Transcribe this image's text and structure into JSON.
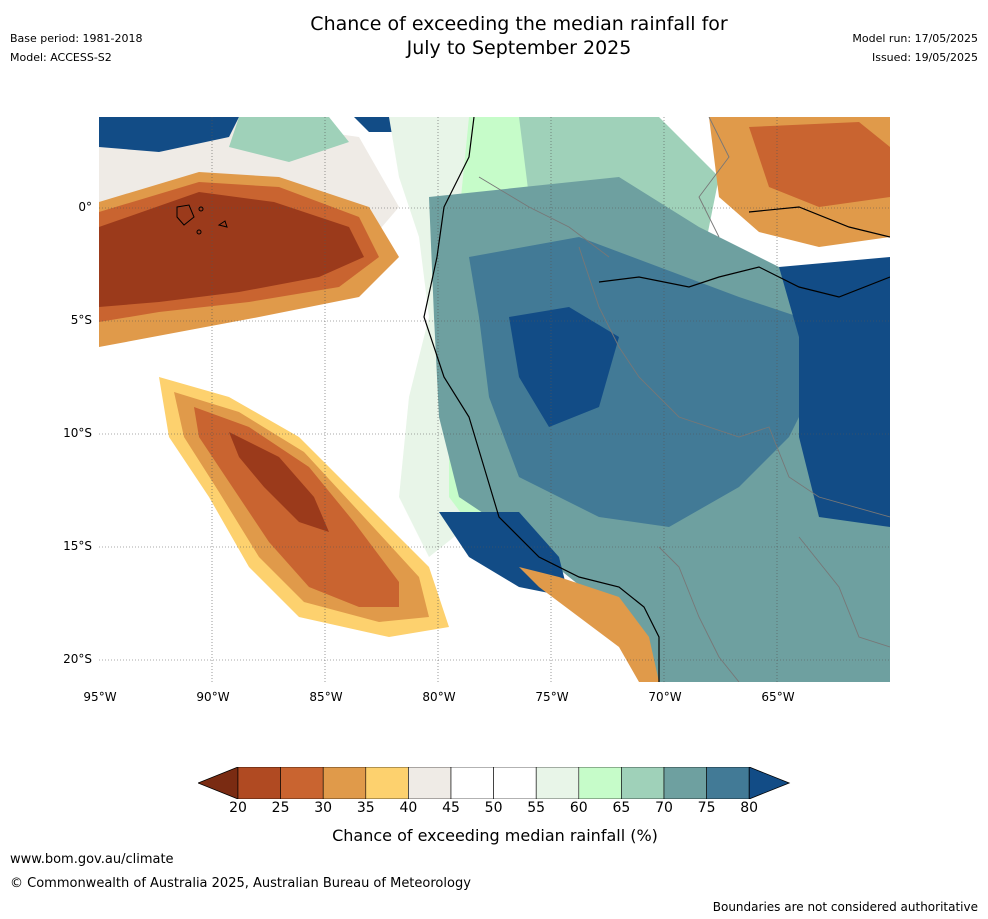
{
  "header": {
    "title_line1": "Chance of exceeding the median rainfall for",
    "title_line2": "July to September 2025",
    "base_period": "Base period: 1981-2018",
    "model": "Model: ACCESS-S2",
    "model_run": "Model run: 17/05/2025",
    "issued": "Issued: 19/05/2025"
  },
  "map": {
    "lat_labels": [
      "0°",
      "5°S",
      "10°S",
      "15°S",
      "20°S"
    ],
    "lon_labels": [
      "95°W",
      "90°W",
      "85°W",
      "80°W",
      "75°W",
      "70°W",
      "65°W"
    ]
  },
  "colorbar": {
    "ticks": [
      "20",
      "25",
      "30",
      "35",
      "40",
      "45",
      "50",
      "55",
      "60",
      "65",
      "70",
      "75",
      "80"
    ],
    "colors": [
      "#7a2b12",
      "#b04a22",
      "#c96430",
      "#e09a4a",
      "#fdd16e",
      "#efebe6",
      "#ffffff",
      "#ffffff",
      "#e8f5e8",
      "#c6fcc9",
      "#9fd1b9",
      "#6ea0a0",
      "#427a96",
      "#124c86"
    ],
    "caption": "Chance of exceeding median rainfall (%)"
  },
  "footer": {
    "website": "www.bom.gov.au/climate",
    "copyright": "© Commonwealth of Australia 2025, Australian Bureau of Meteorology",
    "disclaimer": "Boundaries are not considered authoritative"
  }
}
